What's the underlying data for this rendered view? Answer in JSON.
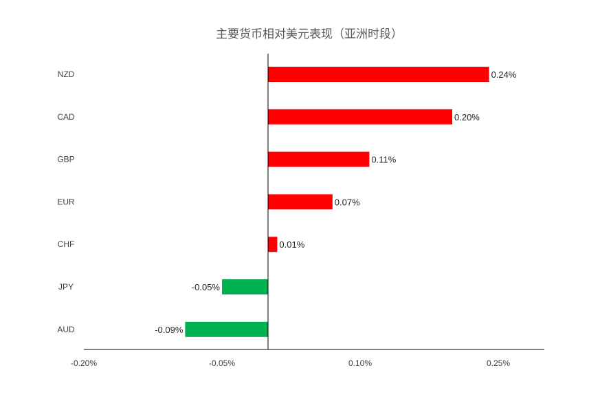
{
  "chart_data": {
    "type": "bar",
    "orientation": "horizontal",
    "title": "主要货币相对美元表现（亚洲时段）",
    "categories": [
      "NZD",
      "CAD",
      "GBP",
      "EUR",
      "CHF",
      "JPY",
      "AUD"
    ],
    "values": [
      0.24,
      0.2,
      0.11,
      0.07,
      0.01,
      -0.05,
      -0.09
    ],
    "value_labels": [
      "0.24%",
      "0.20%",
      "0.11%",
      "0.07%",
      "0.01%",
      "-0.05%",
      "-0.09%"
    ],
    "xlim": [
      -0.2,
      0.3
    ],
    "x_ticks": [
      -0.2,
      -0.05,
      0.1,
      0.25
    ],
    "x_tick_labels": [
      "-0.20%",
      "-0.05%",
      "0.10%",
      "0.25%"
    ],
    "xlabel": "",
    "ylabel": "",
    "grid": false,
    "legend": "none",
    "colors": {
      "positive": "#FF0000",
      "negative": "#00B050",
      "axis": "#000000"
    }
  }
}
